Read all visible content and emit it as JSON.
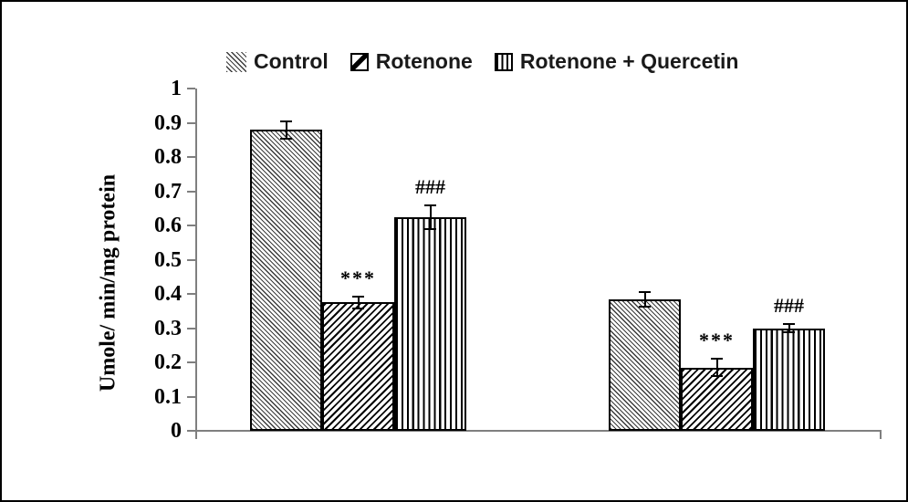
{
  "figure": {
    "background": "#ffffff",
    "frame_color": "#000000",
    "axis_color": "#7f7f7f",
    "ink_color": "#000000"
  },
  "chart_data": {
    "type": "bar",
    "title": "",
    "xlabel": "",
    "ylabel": "Umole/ min/mg protein",
    "ylim": [
      0,
      1
    ],
    "ytick_labels": [
      "0",
      "0.1",
      "0.2",
      "0.3",
      "0.4",
      "0.5",
      "0.6",
      "0.7",
      "0.8",
      "0.9",
      "1"
    ],
    "categories": [
      "",
      ""
    ],
    "grid": false,
    "legend_position": "top",
    "error_bars": true,
    "series": [
      {
        "name": "Control",
        "pattern": "fine-diagonal-down-hatch",
        "values": [
          0.88,
          0.385
        ],
        "errors": [
          0.028,
          0.024
        ],
        "annotations": [
          "",
          ""
        ]
      },
      {
        "name": "Rotenone",
        "pattern": "diagonal-up-hatch",
        "values": [
          0.375,
          0.185
        ],
        "errors": [
          0.02,
          0.028
        ],
        "annotations": [
          "***",
          "***"
        ]
      },
      {
        "name": "Rotenone + Quercetin",
        "pattern": "vertical-stripe-hatch",
        "values": [
          0.625,
          0.3
        ],
        "errors": [
          0.037,
          0.014
        ],
        "annotations": [
          "###",
          "###"
        ]
      }
    ]
  }
}
